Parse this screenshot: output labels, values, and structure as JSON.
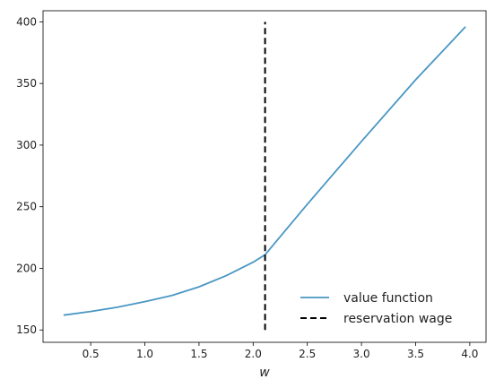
{
  "chart_data": {
    "type": "line",
    "title": "",
    "xlabel": "w",
    "ylabel": "",
    "xlim": [
      0.06,
      4.15
    ],
    "ylim": [
      140,
      409
    ],
    "grid": false,
    "legend_position": "lower-right",
    "x_ticks": [
      0.5,
      1.0,
      1.5,
      2.0,
      2.5,
      3.0,
      3.5,
      4.0
    ],
    "x_tick_labels": [
      "0.5",
      "1.0",
      "1.5",
      "2.0",
      "2.5",
      "3.0",
      "3.5",
      "4.0"
    ],
    "y_ticks": [
      150,
      200,
      250,
      300,
      350,
      400
    ],
    "y_tick_labels": [
      "150",
      "200",
      "250",
      "300",
      "350",
      "400"
    ],
    "series": [
      {
        "name": "value function",
        "color": "#4a97c3",
        "style": "solid",
        "x": [
          0.25,
          0.5,
          0.75,
          1.0,
          1.25,
          1.5,
          1.75,
          2.0,
          2.11,
          2.5,
          3.0,
          3.5,
          3.96
        ],
        "y": [
          162,
          165,
          168.5,
          173,
          178,
          185,
          194,
          205,
          211,
          252,
          303,
          353,
          396
        ]
      },
      {
        "name": "reservation wage",
        "color": "#000000",
        "style": "dashed",
        "x": [
          2.11,
          2.11
        ],
        "y": [
          150,
          400
        ]
      }
    ]
  }
}
